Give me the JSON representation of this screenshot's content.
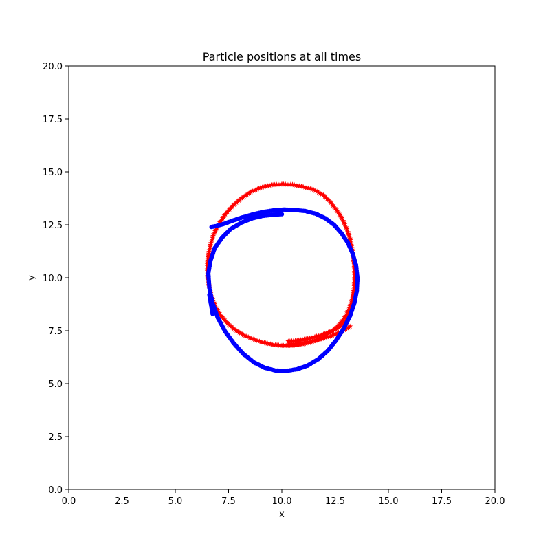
{
  "chart_data": {
    "type": "scatter",
    "title": "Particle positions at all times",
    "xlabel": "x",
    "ylabel": "y",
    "xlim": [
      0,
      20
    ],
    "ylim": [
      0,
      20
    ],
    "xticks": [
      "0.0",
      "2.5",
      "5.0",
      "7.5",
      "10.0",
      "12.5",
      "15.0",
      "17.5",
      "20.0"
    ],
    "yticks": [
      "0.0",
      "2.5",
      "5.0",
      "7.5",
      "10.0",
      "12.5",
      "15.0",
      "17.5",
      "20.0"
    ],
    "grid": false,
    "series": [
      {
        "color": "#ff0000",
        "marker": "star",
        "x": [
          10.3,
          10.8,
          11.3,
          11.8,
          12.25,
          12.6,
          12.85,
          13.05,
          13.2,
          13.3,
          13.35,
          13.4,
          13.42,
          13.4,
          13.35,
          13.28,
          13.2,
          13.05,
          12.85,
          12.6,
          12.3,
          11.95,
          11.5,
          11.0,
          10.5,
          10.0,
          9.5,
          9.0,
          8.55,
          8.1,
          7.7,
          7.35,
          7.05,
          6.8,
          6.65,
          6.55,
          6.5,
          6.52,
          6.6,
          6.72,
          6.9,
          7.15,
          7.45,
          7.8,
          8.2,
          8.65,
          9.1,
          9.55,
          10.0,
          10.45,
          10.9,
          11.35,
          11.75,
          12.1,
          12.45,
          12.75,
          13.0,
          13.2,
          13.35,
          13.42,
          13.45,
          13.2,
          12.8,
          12.3,
          11.8,
          11.3,
          10.8,
          10.3
        ],
        "y": [
          7.0,
          7.05,
          7.15,
          7.28,
          7.45,
          7.6,
          7.8,
          8.05,
          8.4,
          8.75,
          9.15,
          9.6,
          10.05,
          10.5,
          10.95,
          11.4,
          11.85,
          12.3,
          12.75,
          13.15,
          13.55,
          13.9,
          14.15,
          14.3,
          14.4,
          14.42,
          14.38,
          14.25,
          14.05,
          13.75,
          13.4,
          13.0,
          12.55,
          12.05,
          11.55,
          11.05,
          10.55,
          10.0,
          9.5,
          9.05,
          8.6,
          8.2,
          7.85,
          7.55,
          7.3,
          7.1,
          6.95,
          6.85,
          6.8,
          6.8,
          6.85,
          6.95,
          7.1,
          7.3,
          7.55,
          7.85,
          8.2,
          8.65,
          9.1,
          9.6,
          10.1,
          7.7,
          7.45,
          7.25,
          7.1,
          6.98,
          6.9,
          6.85
        ]
      },
      {
        "color": "#0000ff",
        "marker": "circle",
        "x": [
          10.0,
          9.6,
          9.1,
          8.6,
          8.1,
          7.6,
          7.2,
          6.85,
          6.65,
          6.55,
          6.6,
          6.75,
          7.0,
          7.35,
          7.75,
          8.2,
          8.7,
          9.2,
          9.7,
          10.2,
          10.7,
          11.2,
          11.7,
          12.15,
          12.55,
          12.9,
          13.2,
          13.4,
          13.52,
          13.55,
          13.48,
          13.32,
          13.1,
          12.8,
          12.45,
          12.05,
          11.6,
          11.1,
          10.6,
          10.1,
          9.6,
          9.1,
          8.6,
          8.15,
          7.7,
          7.3,
          6.95,
          6.7,
          6.6,
          6.75
        ],
        "y": [
          13.0,
          12.98,
          12.92,
          12.8,
          12.6,
          12.3,
          11.9,
          11.4,
          10.8,
          10.2,
          9.5,
          8.8,
          8.1,
          7.45,
          6.9,
          6.4,
          6.0,
          5.75,
          5.62,
          5.6,
          5.68,
          5.85,
          6.15,
          6.55,
          7.05,
          7.6,
          8.2,
          8.8,
          9.4,
          10.0,
          10.6,
          11.15,
          11.65,
          12.1,
          12.5,
          12.8,
          13.02,
          13.15,
          13.2,
          13.22,
          13.18,
          13.1,
          12.98,
          12.85,
          12.7,
          12.55,
          12.45,
          12.4,
          9.2,
          8.3
        ]
      }
    ]
  }
}
